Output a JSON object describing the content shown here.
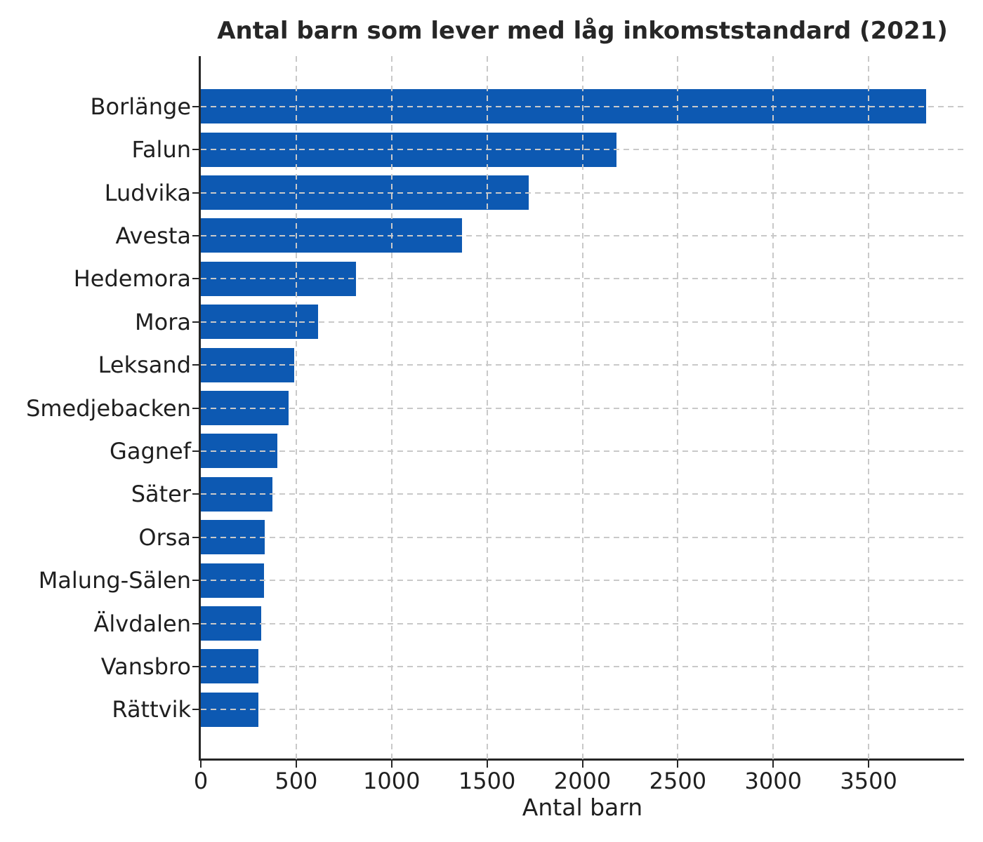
{
  "chart_data": {
    "type": "bar",
    "orientation": "horizontal",
    "title": "Antal barn som lever med låg inkomststandard (2021)",
    "xlabel": "Antal barn",
    "ylabel": "",
    "categories": [
      "Borlänge",
      "Falun",
      "Ludvika",
      "Avesta",
      "Hedemora",
      "Mora",
      "Leksand",
      "Smedjebacken",
      "Gagnef",
      "Säter",
      "Orsa",
      "Malung-Sälen",
      "Älvdalen",
      "Vansbro",
      "Rättvik"
    ],
    "values": [
      3800,
      2180,
      1720,
      1370,
      815,
      615,
      490,
      460,
      400,
      375,
      335,
      330,
      315,
      302,
      300
    ],
    "xlim": [
      0,
      4000
    ],
    "xticks": [
      0,
      500,
      1000,
      1500,
      2000,
      2500,
      3000,
      3500
    ],
    "grid": true,
    "grid_style": "dashed",
    "grid_color": "#c9c9c9",
    "bar_color": "#0d59b2",
    "axis_color": "#262626",
    "legend": null
  }
}
